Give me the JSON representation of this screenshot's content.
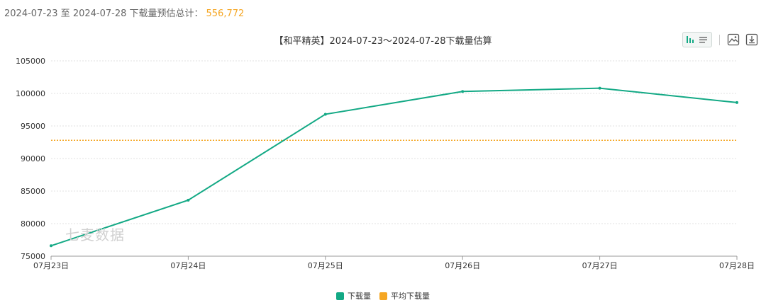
{
  "summary": {
    "label": "2024-07-23 至 2024-07-28 下载量预估总计：",
    "total": "556,772"
  },
  "watermark": "七麦数据",
  "colors": {
    "series_download": "#13a985",
    "series_average": "#f5a623",
    "grid": "#e0e0e0",
    "axis": "#999999"
  },
  "toolbar": {
    "icons": [
      "bar-chart-icon",
      "list-icon",
      "image-icon",
      "download-icon"
    ]
  },
  "chart_data": {
    "type": "line",
    "title": "【和平精英】2024-07-23～2024-07-28下载量估算",
    "categories": [
      "07月23日",
      "07月24日",
      "07月25日",
      "07月26日",
      "07月27日",
      "07月28日"
    ],
    "series": [
      {
        "name": "下载量",
        "values": [
          76600,
          83600,
          96800,
          100300,
          100800,
          98600
        ],
        "style": "solid"
      },
      {
        "name": "平均下载量",
        "values": [
          92795,
          92795,
          92795,
          92795,
          92795,
          92795
        ],
        "style": "dotted"
      }
    ],
    "ylim": [
      75000,
      105000
    ],
    "yticks": [
      "75000",
      "80000",
      "85000",
      "90000",
      "95000",
      "100000",
      "105000"
    ],
    "grid": true,
    "legend": "bottom-center",
    "xlabel": "",
    "ylabel": ""
  }
}
